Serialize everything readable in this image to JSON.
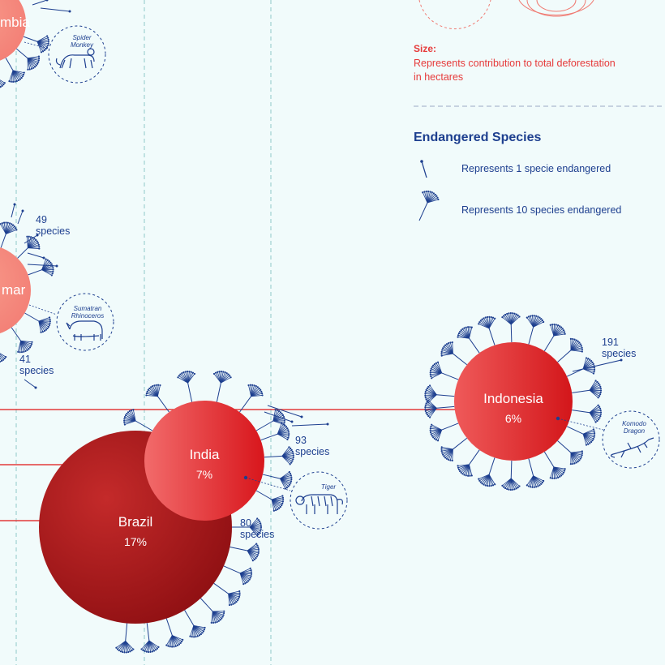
{
  "colors": {
    "background": "#f1fbfb",
    "species_blue": "#1d3f8f",
    "accent_red": "#e63a3a",
    "guide_teal": "#7fc4c4",
    "divider": "#9aa9c4"
  },
  "legend": {
    "size_title": "Size:",
    "size_text_line1": "Represents contribution to total deforestation",
    "size_text_line2": "in hectares",
    "species_title": "Endangered Species",
    "one_species": "Represents 1 specie endangered",
    "ten_species": "Represents 10 species endangered"
  },
  "countries": [
    {
      "key": "colombia",
      "name_fragment": "mbia",
      "species_count": null,
      "animal": "Spider Monkey",
      "animal_line1": "Spider",
      "animal_line2": "Monkey",
      "icon": "spider-monkey-icon"
    },
    {
      "key": "myanmar",
      "name_fragment": "mar",
      "species_upper": "49",
      "species_upper_unit": "species",
      "species_lower": "41",
      "species_lower_unit": "species",
      "animal": "Sumatran Rhinoceros",
      "animal_line1": "Sumatran",
      "animal_line2": "Rhinoceros",
      "icon": "rhinoceros-icon"
    },
    {
      "key": "india",
      "name": "India",
      "percent_label": "7%",
      "percent": 7,
      "species_count": "93",
      "species_unit": "species",
      "animal": "Tiger",
      "animal_line1": "Tiger",
      "icon": "tiger-icon"
    },
    {
      "key": "brazil",
      "name": "Brazil",
      "percent_label": "17%",
      "percent": 17,
      "species_count": "80",
      "species_unit": "species"
    },
    {
      "key": "indonesia",
      "name": "Indonesia",
      "percent_label": "6%",
      "percent": 6,
      "species_count": "191",
      "species_unit": "species",
      "animal": "Komodo Dragon",
      "animal_line1": "Komodo",
      "animal_line2": "Dragon",
      "icon": "komodo-dragon-icon"
    }
  ]
}
